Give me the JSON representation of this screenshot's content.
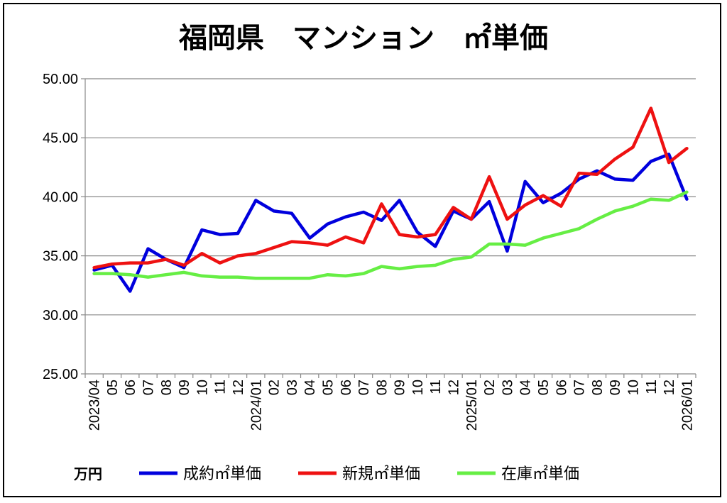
{
  "chart_data": {
    "type": "line",
    "title": "福岡県　マンション　㎡単価",
    "unit_label": "万円",
    "ylim": [
      25,
      50
    ],
    "y_ticks": [
      "25.00",
      "30.00",
      "35.00",
      "40.00",
      "45.00",
      "50.00"
    ],
    "y_tick_values": [
      25,
      30,
      35,
      40,
      45,
      50
    ],
    "grid": true,
    "legend_position": "bottom",
    "x_labels": [
      "2023/04",
      "05",
      "06",
      "07",
      "08",
      "09",
      "10",
      "11",
      "12",
      "2024/01",
      "02",
      "03",
      "04",
      "05",
      "06",
      "07",
      "08",
      "09",
      "10",
      "11",
      "12",
      "2025/01",
      "02",
      "03",
      "04",
      "05",
      "06",
      "07",
      "08",
      "09",
      "10",
      "11",
      "12",
      "2026/01"
    ],
    "series": [
      {
        "name": "成約㎡単価",
        "color": "#0000dd",
        "values": [
          33.8,
          34.2,
          32.0,
          35.6,
          34.7,
          34.0,
          37.2,
          36.8,
          36.9,
          39.7,
          38.8,
          38.6,
          36.5,
          37.7,
          38.3,
          38.7,
          38.0,
          39.7,
          37.0,
          35.8,
          38.8,
          38.1,
          39.6,
          35.4,
          41.3,
          39.5,
          40.3,
          41.5,
          42.2,
          41.5,
          41.4,
          43.0,
          43.6,
          39.8
        ]
      },
      {
        "name": "新規㎡単価",
        "color": "#ee1111",
        "values": [
          34.0,
          34.3,
          34.4,
          34.4,
          34.7,
          34.2,
          35.2,
          34.4,
          35.0,
          35.2,
          35.7,
          36.2,
          36.1,
          35.9,
          36.6,
          36.1,
          39.4,
          36.8,
          36.6,
          36.8,
          39.1,
          38.1,
          41.7,
          38.1,
          39.3,
          40.1,
          39.2,
          42.0,
          41.9,
          43.2,
          44.2,
          47.5,
          42.9,
          44.1
        ]
      },
      {
        "name": "在庫㎡単価",
        "color": "#66ee44",
        "values": [
          33.5,
          33.5,
          33.4,
          33.2,
          33.4,
          33.6,
          33.3,
          33.2,
          33.2,
          33.1,
          33.1,
          33.1,
          33.1,
          33.4,
          33.3,
          33.5,
          34.1,
          33.9,
          34.1,
          34.2,
          34.7,
          34.9,
          36.0,
          36.0,
          35.9,
          36.5,
          36.9,
          37.3,
          38.1,
          38.8,
          39.2,
          39.8,
          39.7,
          40.4
        ]
      }
    ]
  }
}
